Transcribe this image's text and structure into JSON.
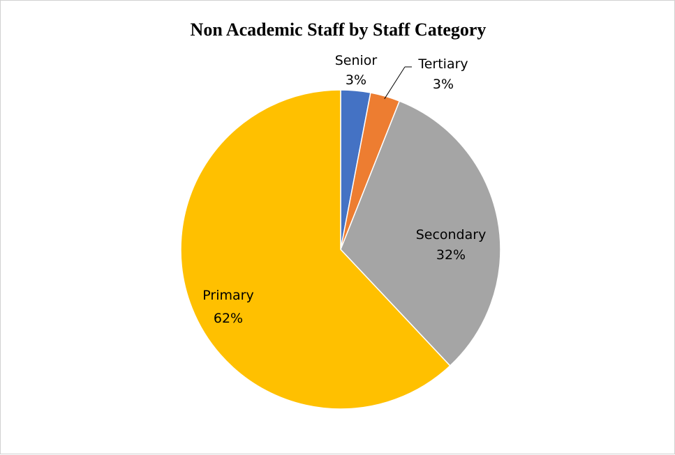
{
  "chart_data": {
    "type": "pie",
    "title": "Non Academic Staff by Staff Category",
    "slices": [
      {
        "label": "Senior",
        "percent_label": "3%",
        "value": 3,
        "color": "#4472C4"
      },
      {
        "label": "Tertiary",
        "percent_label": "3%",
        "value": 3,
        "color": "#ED7D31"
      },
      {
        "label": "Secondary",
        "percent_label": "32%",
        "value": 32,
        "color": "#A5A5A5"
      },
      {
        "label": "Primary",
        "percent_label": "62%",
        "value": 62,
        "color": "#FFC000"
      }
    ],
    "start": "12 o'clock",
    "direction": "clockwise",
    "legend": "none",
    "data_labels": "category and percent"
  }
}
